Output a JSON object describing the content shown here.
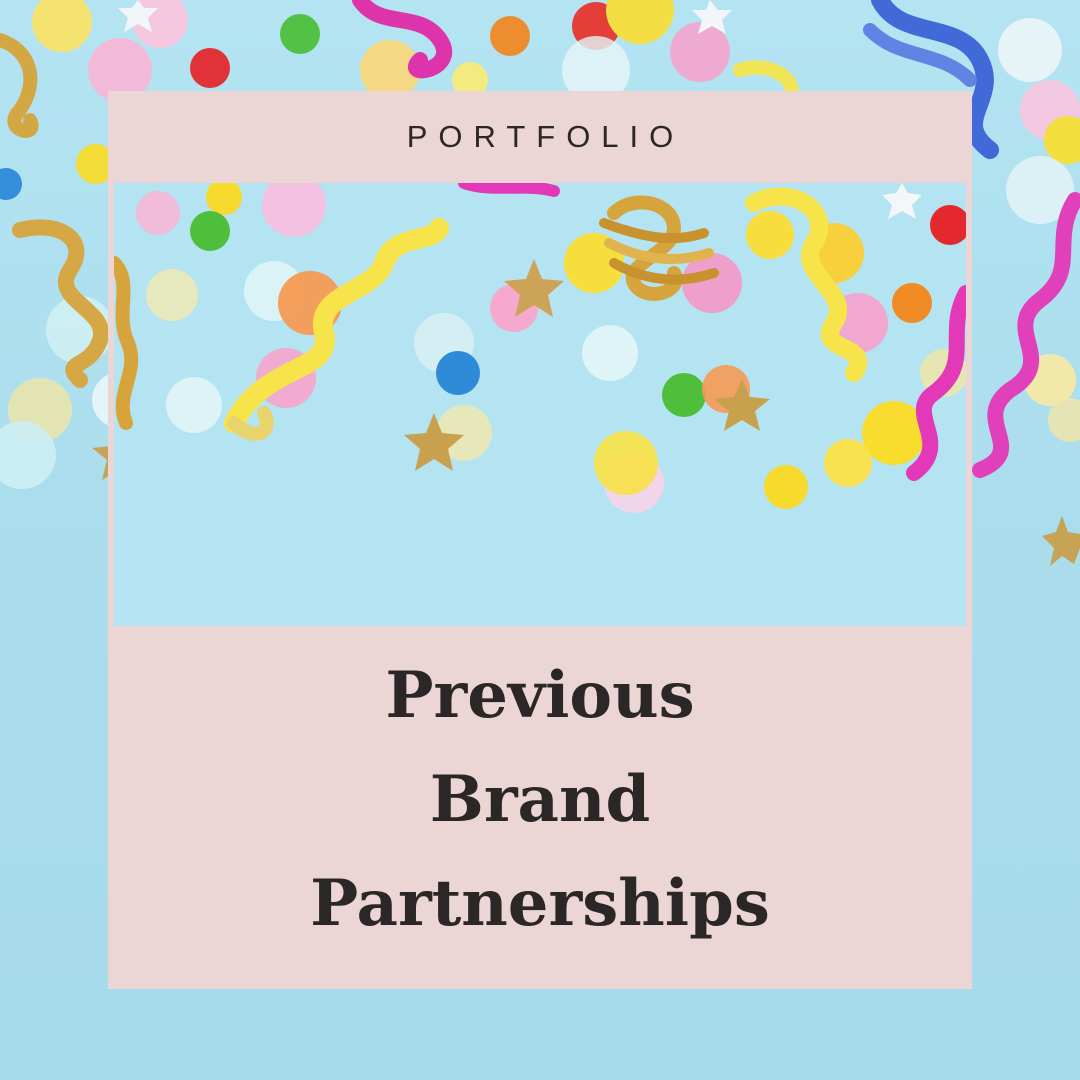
{
  "header": {
    "label": "PORTFOLIO"
  },
  "headline": {
    "line1": "Previous",
    "line2": "Brand",
    "line3": "Partnerships"
  },
  "colors": {
    "background": "#aee0ef",
    "card": "#ecd6d5",
    "text": "#2b2727"
  },
  "decoration": {
    "photo": "party-confetti-streamers-photo",
    "icons": [
      "confetti-dot",
      "candy-ball",
      "gold-star",
      "curly-streamer"
    ]
  }
}
